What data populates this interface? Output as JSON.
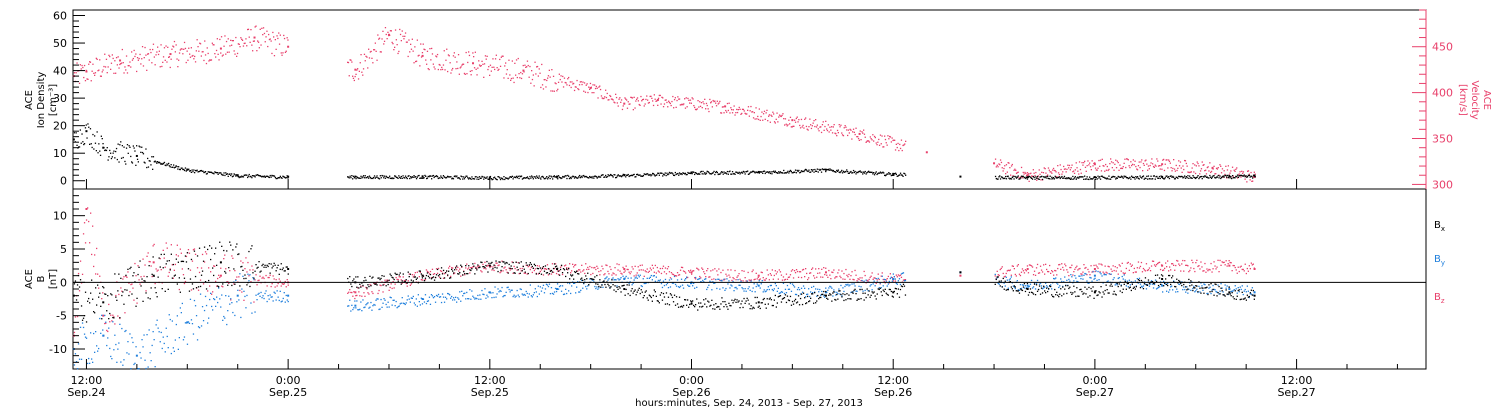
{
  "colors": {
    "black": "#000000",
    "pink": "#e8406b",
    "blue": "#1f7fdc",
    "axis": "#000000"
  },
  "x_axis": {
    "caption": "hours:minutes, Sep. 24, 2013 - Sep. 27, 2013",
    "ticks": [
      {
        "t": 12,
        "top": "12:00",
        "bottom": "Sep.24"
      },
      {
        "t": 24,
        "top": "0:00",
        "bottom": "Sep.25"
      },
      {
        "t": 36,
        "top": "12:00",
        "bottom": "Sep.25"
      },
      {
        "t": 48,
        "top": "0:00",
        "bottom": "Sep.26"
      },
      {
        "t": 60,
        "top": "12:00",
        "bottom": "Sep.26"
      },
      {
        "t": 72,
        "top": "0:00",
        "bottom": "Sep.27"
      },
      {
        "t": 84,
        "top": "12:00",
        "bottom": "Sep.27"
      }
    ],
    "range_hours": [
      11.2,
      91.7
    ]
  },
  "panels": {
    "top": {
      "left_label": [
        "ACE",
        "Ion Density",
        "[cm⁻³]"
      ],
      "right_label": [
        "ACE",
        "Velocity",
        "[km/s]"
      ],
      "left_ticks": [
        "0",
        "10",
        "20",
        "30",
        "40",
        "50",
        "60"
      ],
      "right_ticks": [
        "300",
        "350",
        "400",
        "450"
      ]
    },
    "bottom": {
      "left_label": [
        "ACE",
        "B",
        "[nT]"
      ],
      "left_ticks": [
        "-10",
        "-5",
        "0",
        "5",
        "10"
      ],
      "legend": [
        {
          "label": "B",
          "sub": "x",
          "color": "#000000"
        },
        {
          "label": "B",
          "sub": "y",
          "color": "#1f7fdc"
        },
        {
          "label": "B",
          "sub": "z",
          "color": "#e8406b"
        }
      ]
    }
  },
  "chart_data": [
    {
      "type": "scatter",
      "title": "",
      "xlabel": "hours:minutes, Sep. 24, 2013 - Sep. 27, 2013",
      "ylabel": "ACE Ion Density [cm-3]",
      "ylim": [
        -3,
        62
      ],
      "y2label": "ACE Velocity [km/s]",
      "y2lim": [
        295,
        490
      ],
      "data_gaps_hours": [
        [
          24.0,
          27.5
        ],
        [
          60.7,
          66.0
        ]
      ],
      "series": [
        {
          "name": "Ion Density",
          "axis": "left",
          "color": "#000000",
          "x": [
            "2013-09-24 11:15",
            "2013-09-24 12:00",
            "2013-09-24 13:00",
            "2013-09-24 15:00",
            "2013-09-24 18:00",
            "2013-09-24 21:00",
            "2013-09-25 00:00",
            "2013-09-25 04:00",
            "2013-09-25 08:00",
            "2013-09-25 12:00",
            "2013-09-25 16:00",
            "2013-09-25 20:00",
            "2013-09-26 00:00",
            "2013-09-26 04:00",
            "2013-09-26 08:00",
            "2013-09-26 12:00",
            "2013-09-26 16:00",
            "2013-09-26 20:00",
            "2013-09-27 00:00",
            "2013-09-27 04:00",
            "2013-09-27 08:00",
            "2013-09-27 09:30"
          ],
          "y": [
            15,
            18,
            12,
            9,
            4,
            2,
            1.5,
            1.5,
            1.6,
            1.2,
            1.5,
            2,
            3,
            3.2,
            4,
            2.5,
            1.5,
            1.3,
            1.3,
            1.4,
            1.6,
            1.8
          ]
        },
        {
          "name": "Velocity",
          "axis": "right",
          "color": "#e8406b",
          "x": [
            "2013-09-24 11:15",
            "2013-09-24 12:00",
            "2013-09-24 14:00",
            "2013-09-24 17:00",
            "2013-09-24 20:00",
            "2013-09-24 22:00",
            "2013-09-25 00:00",
            "2013-09-25 04:00",
            "2013-09-25 06:00",
            "2013-09-25 08:00",
            "2013-09-25 11:00",
            "2013-09-25 14:00",
            "2013-09-25 18:00",
            "2013-09-25 20:00",
            "2013-09-25 22:00",
            "2013-09-26 02:00",
            "2013-09-26 06:00",
            "2013-09-26 10:00",
            "2013-09-26 14:00",
            "2013-09-26 18:00",
            "2013-09-26 20:00",
            "2013-09-27 00:00",
            "2013-09-27 04:00",
            "2013-09-27 07:00",
            "2013-09-27 09:30"
          ],
          "y": [
            418,
            423,
            435,
            442,
            448,
            460,
            450,
            425,
            463,
            440,
            432,
            424,
            405,
            388,
            392,
            385,
            370,
            355,
            335,
            323,
            310,
            322,
            322,
            318,
            308
          ]
        }
      ]
    },
    {
      "type": "scatter",
      "title": "",
      "ylabel": "ACE B [nT]",
      "ylim": [
        -13,
        14
      ],
      "zero_line": true,
      "data_gaps_hours": [
        [
          24.0,
          27.5
        ],
        [
          60.7,
          66.0
        ]
      ],
      "series": [
        {
          "name": "Bx",
          "color": "#000000",
          "x": [
            "2013-09-24 11:15",
            "2013-09-24 13:00",
            "2013-09-24 16:00",
            "2013-09-24 20:00",
            "2013-09-25 00:00",
            "2013-09-25 04:00",
            "2013-09-25 08:00",
            "2013-09-25 12:00",
            "2013-09-25 16:00",
            "2013-09-25 20:00",
            "2013-09-26 00:00",
            "2013-09-26 04:00",
            "2013-09-26 08:00",
            "2013-09-26 12:00",
            "2013-09-26 16:00",
            "2013-09-26 20:00",
            "2013-09-27 00:00",
            "2013-09-27 04:00",
            "2013-09-27 08:00",
            "2013-09-27 09:30"
          ],
          "y": [
            -2,
            -3,
            1,
            3,
            2,
            0,
            1,
            2.5,
            2,
            -1,
            -3.2,
            -3,
            -2,
            -1.5,
            1.5,
            -1,
            -1.5,
            0.5,
            -1.5,
            -2
          ]
        },
        {
          "name": "By",
          "color": "#1f7fdc",
          "x": [
            "2013-09-24 11:15",
            "2013-09-24 13:00",
            "2013-09-24 15:00",
            "2013-09-24 18:00",
            "2013-09-24 21:00",
            "2013-09-25 00:00",
            "2013-09-25 04:00",
            "2013-09-25 08:00",
            "2013-09-25 12:00",
            "2013-09-25 16:00",
            "2013-09-25 20:00",
            "2013-09-26 00:00",
            "2013-09-26 04:00",
            "2013-09-26 08:00",
            "2013-09-26 12:00",
            "2013-09-26 16:00",
            "2013-09-26 20:00",
            "2013-09-27 00:00",
            "2013-09-27 04:00",
            "2013-09-27 08:00",
            "2013-09-27 09:30"
          ],
          "y": [
            -10,
            -8,
            -11,
            -6,
            -2,
            -2,
            -3.5,
            -2.5,
            -1.5,
            -1,
            0.5,
            0,
            -0.5,
            -1.5,
            0.5,
            1.5,
            -0.5,
            1,
            -0.5,
            -1,
            -1.5
          ]
        },
        {
          "name": "Bz",
          "color": "#e8406b",
          "x": [
            "2013-09-24 11:15",
            "2013-09-24 12:00",
            "2013-09-24 13:00",
            "2013-09-24 16:00",
            "2013-09-24 20:00",
            "2013-09-25 00:00",
            "2013-09-25 04:00",
            "2013-09-25 08:00",
            "2013-09-25 12:00",
            "2013-09-25 16:00",
            "2013-09-25 20:00",
            "2013-09-26 00:00",
            "2013-09-26 04:00",
            "2013-09-26 08:00",
            "2013-09-26 12:00",
            "2013-09-26 16:00",
            "2013-09-26 20:00",
            "2013-09-27 00:00",
            "2013-09-27 04:00",
            "2013-09-27 08:00",
            "2013-09-27 09:30"
          ],
          "y": [
            -8,
            11,
            -5,
            3,
            1,
            0,
            -1.5,
            1,
            2.5,
            2,
            2,
            1.5,
            1,
            1.5,
            0.5,
            1,
            2,
            2,
            2.5,
            2.5,
            2
          ]
        }
      ]
    }
  ]
}
